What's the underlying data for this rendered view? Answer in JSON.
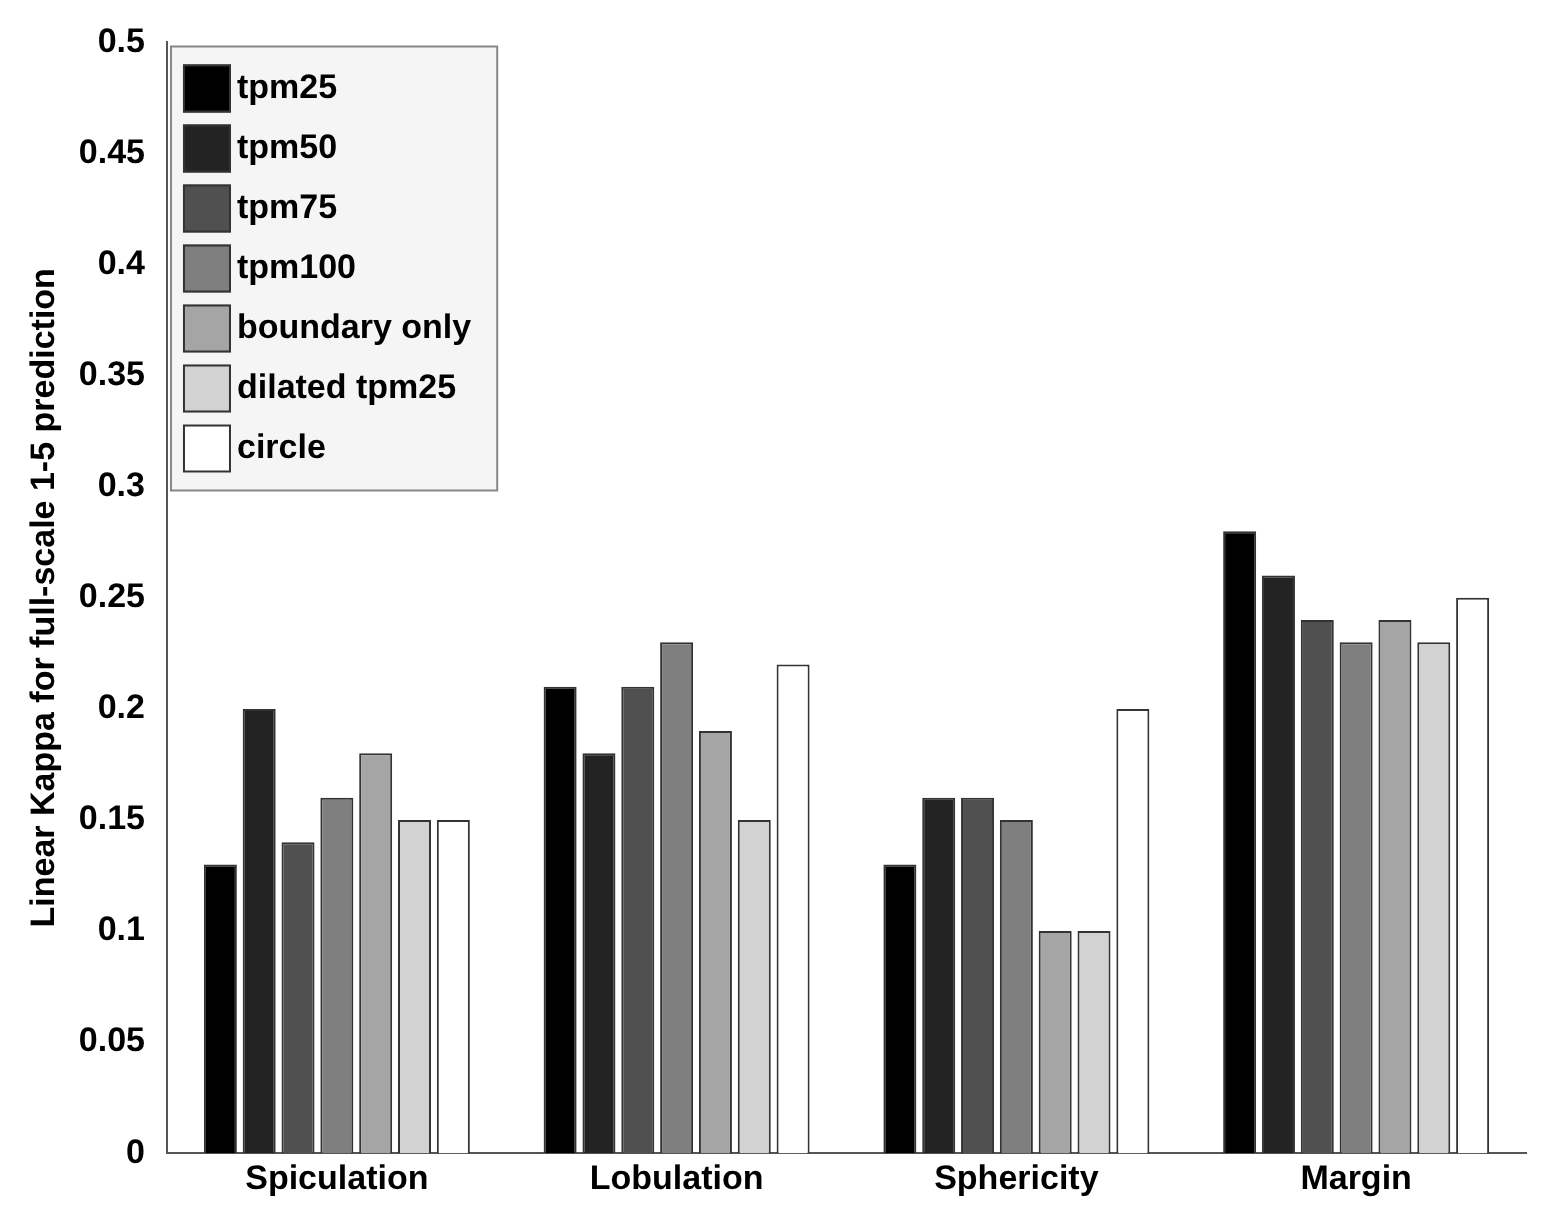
{
  "chart_data": {
    "type": "bar",
    "ylabel": "Linear Kappa for full-scale 1-5 prediction",
    "categories": [
      "Spiculation",
      "Lobulation",
      "Sphericity",
      "Margin"
    ],
    "series": [
      {
        "name": "tpm25",
        "color": "#000000",
        "values": [
          0.13,
          0.21,
          0.13,
          0.28
        ]
      },
      {
        "name": "tpm50",
        "color": "#232323",
        "values": [
          0.2,
          0.18,
          0.16,
          0.26
        ]
      },
      {
        "name": "tpm75",
        "color": "#505050",
        "values": [
          0.14,
          0.21,
          0.16,
          0.24
        ]
      },
      {
        "name": "tpm100",
        "color": "#7f7f7f",
        "values": [
          0.16,
          0.23,
          0.15,
          0.23
        ]
      },
      {
        "name": "boundary only",
        "color": "#a5a5a5",
        "values": [
          0.18,
          0.19,
          0.1,
          0.24
        ]
      },
      {
        "name": "dilated tpm25",
        "color": "#d2d2d2",
        "values": [
          0.15,
          0.15,
          0.1,
          0.23
        ]
      },
      {
        "name": "circle",
        "color": "#ffffff",
        "values": [
          0.15,
          0.22,
          0.2,
          0.25
        ]
      }
    ],
    "ylim": [
      0,
      0.5
    ],
    "yticks": [
      0,
      0.05,
      0.1,
      0.15,
      0.2,
      0.25,
      0.3,
      0.35,
      0.4,
      0.45,
      0.5
    ],
    "grid": false,
    "legend": "top left"
  }
}
